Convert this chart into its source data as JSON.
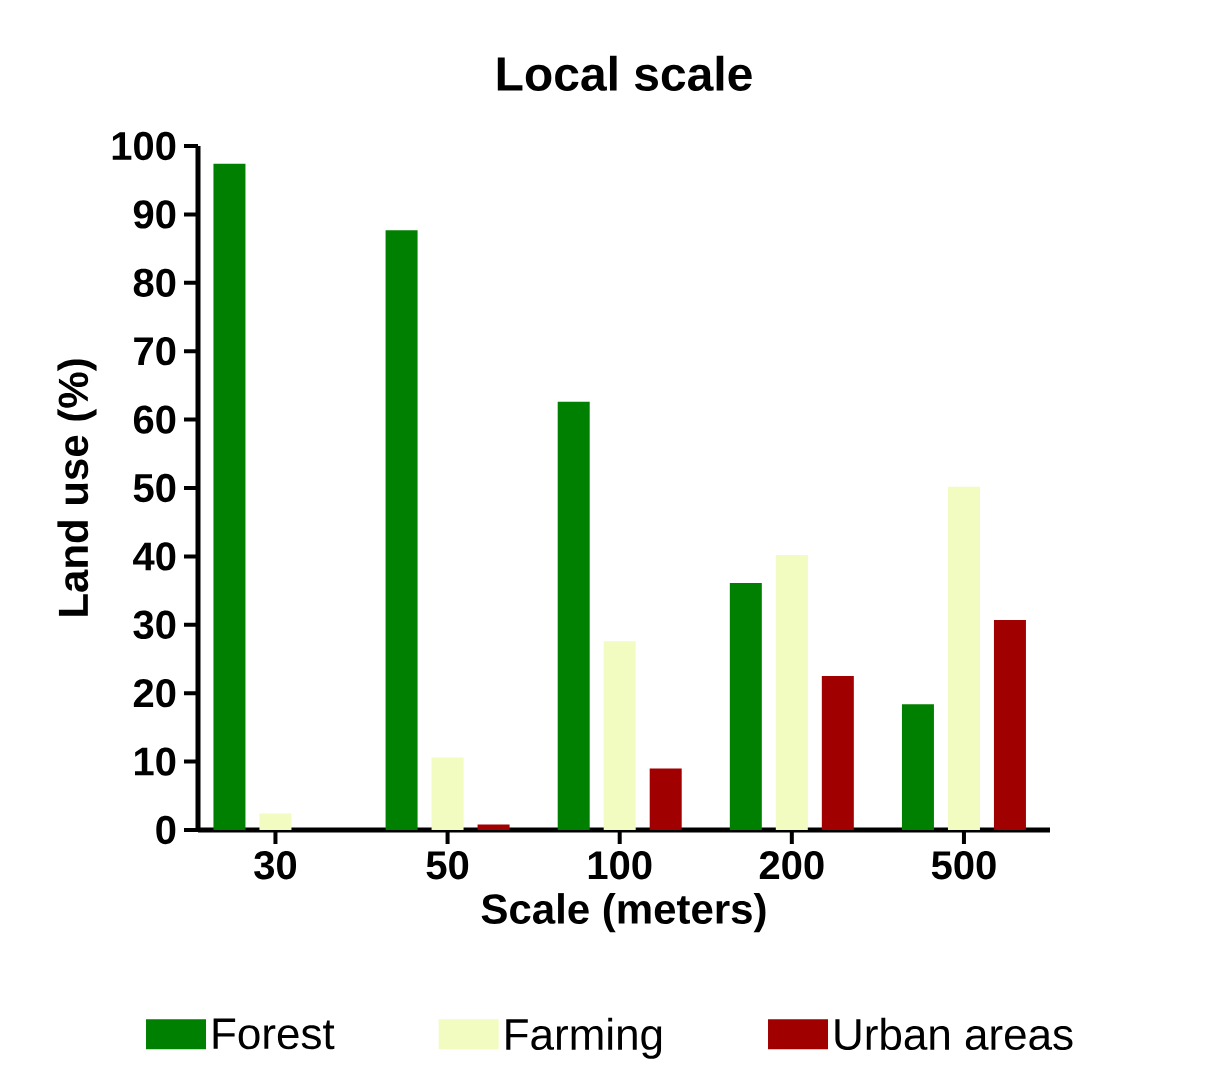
{
  "chart_data": {
    "type": "bar",
    "title": "Local scale",
    "xlabel": "Scale (meters)",
    "ylabel": "Land use (%)",
    "categories": [
      "30",
      "50",
      "100",
      "200",
      "500"
    ],
    "series": [
      {
        "name": "Forest",
        "color": "#008000",
        "values": [
          97.4,
          87.7,
          62.6,
          36.1,
          18.4
        ]
      },
      {
        "name": "Farming",
        "color": "#f2fbc0",
        "values": [
          2.4,
          10.6,
          27.6,
          40.2,
          50.2
        ]
      },
      {
        "name": "Urban areas",
        "color": "#a00000",
        "values": [
          0,
          0.8,
          9.0,
          22.5,
          30.7
        ]
      }
    ],
    "ylim": [
      0,
      100
    ],
    "yticks": [
      0,
      10,
      20,
      30,
      40,
      50,
      60,
      70,
      80,
      90,
      100
    ],
    "legend": "bottom"
  }
}
